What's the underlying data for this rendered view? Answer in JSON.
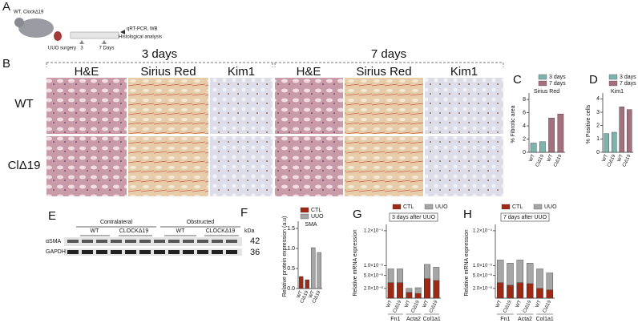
{
  "panel_a": {
    "label": "A",
    "genotypes": "WT, Clock∆19",
    "surgery": "UUO surgery",
    "day3": "3",
    "day7": "7 Days",
    "analysis_1": "qRT-PCR, WB",
    "analysis_2": "Histological analysis"
  },
  "panel_b": {
    "label": "B",
    "timepoints": [
      "3 days",
      "7 days"
    ],
    "stains": [
      "H&E",
      "Sirius Red",
      "Kim1",
      "H&E",
      "Sirius Red",
      "Kim1"
    ],
    "rows": [
      "WT",
      "ClΔ19"
    ]
  },
  "panel_e": {
    "label": "E",
    "groups": [
      "Contralateral",
      "Obstructed"
    ],
    "lanes": [
      "WT",
      "CLOCKΔ19",
      "WT",
      "CLOCKΔ19"
    ],
    "unit": "kDa",
    "proteins": [
      "αSMA",
      "GAPDH"
    ],
    "sizes": [
      "42",
      "36"
    ]
  },
  "chart_data": [
    {
      "type": "bar",
      "label": "C",
      "title": "Sirius Red",
      "y_label": "% Fibrotic area",
      "categories": [
        "WT",
        "ClΔ19",
        "WT",
        "ClΔ19"
      ],
      "values": [
        1.4,
        1.6,
        5.2,
        5.8
      ],
      "colors": [
        "#7fb3ad",
        "#7fb3ad",
        "#a4707e",
        "#a4707e"
      ],
      "legend": [
        {
          "name": "3 days",
          "color": "#7fb3ad"
        },
        {
          "name": "7 days",
          "color": "#a4707e"
        }
      ],
      "ylim": [
        0,
        8.5
      ],
      "yticks": [
        0,
        2,
        4,
        6,
        8
      ]
    },
    {
      "type": "bar",
      "label": "D",
      "title": "Kim1",
      "y_label": "% Positive cells",
      "categories": [
        "WT",
        "ClΔ19",
        "WT",
        "ClΔ19"
      ],
      "values": [
        1.4,
        1.5,
        3.4,
        3.2
      ],
      "colors": [
        "#7fb3ad",
        "#7fb3ad",
        "#a4707e",
        "#a4707e"
      ],
      "legend": [
        {
          "name": "3 days",
          "color": "#7fb3ad"
        },
        {
          "name": "7 days",
          "color": "#a4707e"
        }
      ],
      "ylim": [
        0,
        4.2
      ],
      "yticks": [
        0,
        1,
        2,
        3,
        4
      ]
    },
    {
      "type": "bar",
      "label": "F",
      "title": "SMA",
      "y_label": "Relative protein expression (a.u)",
      "categories": [
        "WT",
        "ClΔ19",
        "WT",
        "ClΔ19"
      ],
      "values": [
        0.3,
        0.22,
        1.02,
        0.9
      ],
      "colors": [
        "#9e2a16",
        "#9e2a16",
        "#a6a6a6",
        "#a6a6a6"
      ],
      "legend": [
        {
          "name": "CTL",
          "color": "#9e2a16"
        },
        {
          "name": "UUO",
          "color": "#a6a6a6"
        }
      ],
      "ylim": [
        0,
        1.6
      ],
      "yticks": [
        {
          "value": 0,
          "label": "0.0"
        },
        {
          "value": 0.5,
          "label": "0.5"
        },
        {
          "value": 1,
          "label": "1.0"
        },
        {
          "value": 1.5,
          "label": "1.5"
        }
      ]
    },
    {
      "type": "bar",
      "label": "G",
      "annotation": "3 days after UUO",
      "y_label": "Relative mRNA expression",
      "log_scale": true,
      "groups": [
        "Fn1",
        "Acta2",
        "Col1a1"
      ],
      "categories": [
        "WT",
        "ClΔ19",
        "WT",
        "ClΔ19",
        "WT",
        "ClΔ19"
      ],
      "series": [
        {
          "name": "CTL",
          "color": "#9e2a16",
          "values": [
            3e-06,
            3e-06,
            1.5e-06,
            1.4e-06,
            4e-06,
            3.5e-06
          ]
        },
        {
          "name": "UUO",
          "color": "#a6a6a6",
          "values": [
            8e-06,
            8e-06,
            2e-06,
            2.1e-06,
            1.1e-05,
            9e-06
          ]
        }
      ],
      "ylim": [
        1e-06,
        0.00015
      ],
      "yticks": [
        {
          "value": 2e-06,
          "label": "2.0×10⁻⁶"
        },
        {
          "value": 5e-06,
          "label": "5.0×10⁻⁶"
        },
        {
          "value": 1e-05,
          "label": "1.0×10⁻⁵"
        },
        {
          "value": 0.00012,
          "label": "1.2×10⁻⁴"
        }
      ]
    },
    {
      "type": "bar",
      "label": "H",
      "annotation": "7 days after UUO",
      "y_label": "Relative mRNA expression",
      "log_scale": true,
      "groups": [
        "Fn1",
        "Acta2",
        "Col1a1"
      ],
      "categories": [
        "WT",
        "ClΔ19",
        "WT",
        "ClΔ19",
        "WT",
        "ClΔ19"
      ],
      "series": [
        {
          "name": "CTL",
          "color": "#9e2a16",
          "values": [
            3e-06,
            2.5e-06,
            3e-06,
            2.8e-06,
            2e-06,
            1.8e-06
          ]
        },
        {
          "name": "UUO",
          "color": "#a6a6a6",
          "values": [
            1.5e-05,
            1.2e-05,
            1.5e-05,
            1.2e-05,
            8e-06,
            6e-06
          ]
        }
      ],
      "ylim": [
        1e-06,
        0.00015
      ],
      "yticks": [
        {
          "value": 2e-06,
          "label": "2.0×10⁻⁶"
        },
        {
          "value": 5e-06,
          "label": "5.0×10⁻⁶"
        },
        {
          "value": 1e-05,
          "label": "1.0×10⁻⁵"
        },
        {
          "value": 0.00012,
          "label": "1.2×10⁻⁴"
        }
      ]
    }
  ]
}
